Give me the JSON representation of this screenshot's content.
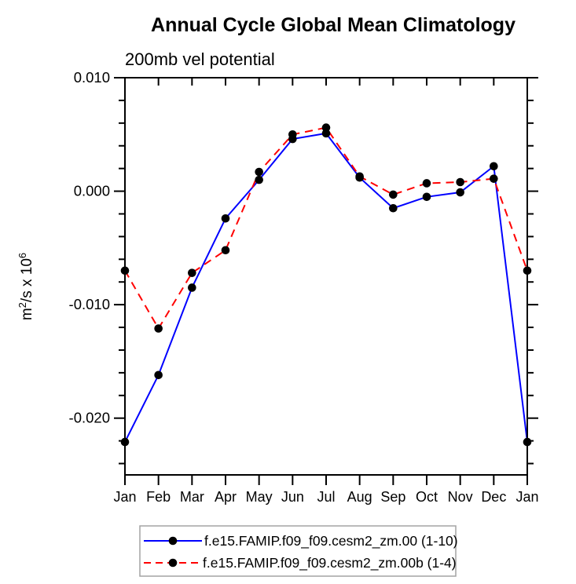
{
  "title": "Annual Cycle Global Mean Climatology",
  "subtitle": "200mb vel potential",
  "ylabel": "m^2/s x 10^6",
  "ylabel_parts": [
    {
      "t": "m",
      "sup": false
    },
    {
      "t": "2",
      "sup": true
    },
    {
      "t": "/s x 10",
      "sup": false
    },
    {
      "t": "6",
      "sup": true
    }
  ],
  "colors": {
    "series1": "#0000ff",
    "series2": "#ff0000",
    "marker": "#000000",
    "axis": "#000000",
    "legend_border": "#a3a3a3"
  },
  "chart_data": {
    "type": "line",
    "title": "Annual Cycle Global Mean Climatology",
    "subtitle": "200mb vel potential",
    "ylabel": "m^2/s x 10^6",
    "categories": [
      "Jan",
      "Feb",
      "Mar",
      "Apr",
      "May",
      "Jun",
      "Jul",
      "Aug",
      "Sep",
      "Oct",
      "Nov",
      "Dec",
      "Jan"
    ],
    "series": [
      {
        "name": "f.e15.FAMIP.f09_f09.cesm2_zm.00 (1-10)",
        "color": "#0000ff",
        "style": "solid",
        "marker": "filled-circle",
        "marker_color": "#000000",
        "values": [
          -0.0221,
          -0.0162,
          -0.0085,
          -0.0024,
          0.001,
          0.0046,
          0.0051,
          0.0012,
          -0.0015,
          -0.0005,
          -0.0001,
          0.0022,
          -0.0221
        ]
      },
      {
        "name": "f.e15.FAMIP.f09_f09.cesm2_zm.00b (1-4)",
        "color": "#ff0000",
        "style": "dashed",
        "marker": "filled-circle",
        "marker_color": "#000000",
        "values": [
          -0.007,
          -0.0121,
          -0.0072,
          -0.0052,
          0.0017,
          0.005,
          0.0056,
          0.0013,
          -0.0003,
          0.0007,
          0.0008,
          0.0011,
          -0.007
        ]
      }
    ],
    "ylim": [
      -0.025,
      0.01
    ],
    "ytick_major": [
      0.01,
      0.0,
      -0.01,
      -0.02
    ],
    "ytick_labels": [
      "0.010",
      "0.000",
      "-0.010",
      "-0.020"
    ],
    "ytick_minor_step": 0.002,
    "grid": false,
    "legend_position": "bottom-center"
  }
}
